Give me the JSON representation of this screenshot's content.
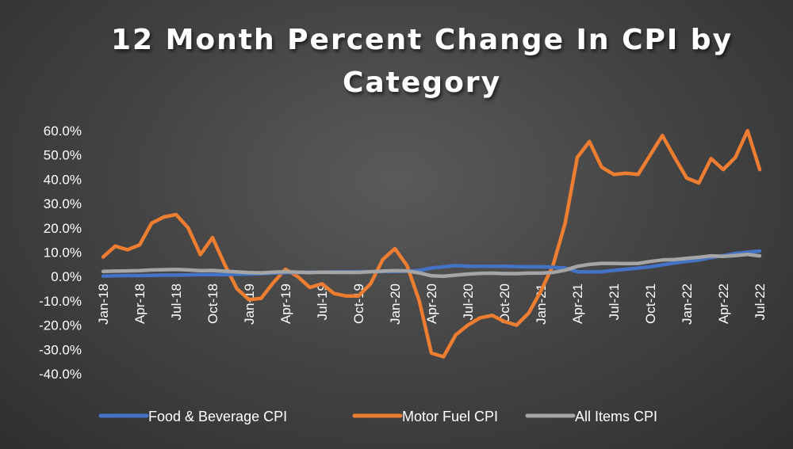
{
  "chart_data": {
    "type": "line",
    "title": "12 Month Percent Change In CPI by Category",
    "title_lines": [
      "12 Month Percent Change In CPI by",
      "Category"
    ],
    "xlabel": "",
    "ylabel": "",
    "ylim": [
      -40,
      60
    ],
    "y_ticks": [
      "60.0%",
      "50.0%",
      "40.0%",
      "30.0%",
      "20.0%",
      "10.0%",
      "0.0%",
      "-10.0%",
      "-20.0%",
      "-30.0%",
      "-40.0%"
    ],
    "x_tick_labels": [
      "Jan-18",
      "Apr-18",
      "Jul-18",
      "Oct-18",
      "Jan-19",
      "Apr-19",
      "Jul-19",
      "Oct-19",
      "Jan-20",
      "Apr-20",
      "Jul-20",
      "Oct-20",
      "Jan-21",
      "Apr-21",
      "Jul-21",
      "Oct-21",
      "Jan-22",
      "Apr-22",
      "Jul-22"
    ],
    "months": [
      "Jan-18",
      "Feb-18",
      "Mar-18",
      "Apr-18",
      "May-18",
      "Jun-18",
      "Jul-18",
      "Aug-18",
      "Sep-18",
      "Oct-18",
      "Nov-18",
      "Dec-18",
      "Jan-19",
      "Feb-19",
      "Mar-19",
      "Apr-19",
      "May-19",
      "Jun-19",
      "Jul-19",
      "Aug-19",
      "Sep-19",
      "Oct-19",
      "Nov-19",
      "Dec-19",
      "Jan-20",
      "Feb-20",
      "Mar-20",
      "Apr-20",
      "May-20",
      "Jun-20",
      "Jul-20",
      "Aug-20",
      "Sep-20",
      "Oct-20",
      "Nov-20",
      "Dec-20",
      "Jan-21",
      "Feb-21",
      "Mar-21",
      "Apr-21",
      "May-21",
      "Jun-21",
      "Jul-21",
      "Aug-21",
      "Sep-21",
      "Oct-21",
      "Nov-21",
      "Dec-21",
      "Jan-22",
      "Feb-22",
      "Mar-22",
      "Apr-22",
      "May-22",
      "Jun-22",
      "Jul-22"
    ],
    "series": [
      {
        "name": "Food & Beverage CPI",
        "color": "#4472c4",
        "values": [
          0.2,
          0.3,
          0.4,
          0.4,
          0.5,
          0.6,
          0.6,
          0.7,
          0.8,
          0.8,
          0.8,
          0.9,
          1.0,
          1.2,
          1.4,
          1.6,
          1.7,
          1.8,
          1.8,
          1.9,
          1.9,
          2.0,
          2.0,
          2.1,
          2.1,
          2.2,
          2.5,
          3.5,
          4.0,
          4.5,
          4.2,
          4.2,
          4.2,
          4.2,
          4.1,
          4.0,
          4.0,
          3.8,
          3.5,
          2.0,
          1.9,
          2.0,
          2.5,
          3.0,
          3.5,
          4.0,
          4.8,
          5.6,
          6.2,
          6.8,
          7.8,
          8.6,
          9.5,
          10.0,
          10.5
        ]
      },
      {
        "name": "Motor Fuel CPI",
        "color": "#ed7d31",
        "values": [
          8.0,
          12.5,
          11.0,
          13.0,
          22.0,
          24.5,
          25.5,
          20.0,
          9.0,
          16.0,
          5.0,
          -5.0,
          -9.5,
          -9.0,
          -2.5,
          3.0,
          0.0,
          -4.5,
          -3.0,
          -7.0,
          -8.0,
          -8.0,
          -3.0,
          7.0,
          11.5,
          4.5,
          -10.0,
          -31.5,
          -33.0,
          -24.0,
          -20.0,
          -17.0,
          -16.0,
          -18.5,
          -20.0,
          -15.0,
          -6.0,
          4.5,
          22.0,
          49.0,
          55.5,
          45.0,
          42.0,
          42.5,
          42.0,
          50.0,
          58.0,
          49.0,
          40.5,
          38.5,
          48.5,
          44.0,
          49.0,
          60.0,
          44.0
        ]
      },
      {
        "name": "All Items CPI",
        "color": "#a5a5a5",
        "values": [
          2.1,
          2.2,
          2.3,
          2.4,
          2.7,
          2.8,
          2.9,
          2.7,
          2.4,
          2.5,
          2.2,
          1.9,
          1.6,
          1.5,
          1.8,
          2.0,
          1.8,
          1.6,
          1.8,
          1.7,
          1.7,
          1.7,
          2.0,
          2.2,
          2.4,
          2.3,
          1.5,
          0.3,
          0.1,
          0.6,
          1.0,
          1.3,
          1.4,
          1.2,
          1.2,
          1.4,
          1.4,
          1.7,
          2.6,
          4.2,
          5.0,
          5.4,
          5.4,
          5.3,
          5.4,
          6.2,
          6.8,
          7.0,
          7.5,
          7.9,
          8.5,
          8.3,
          8.6,
          9.1,
          8.5
        ]
      }
    ],
    "legend_position": "bottom",
    "grid": false
  }
}
